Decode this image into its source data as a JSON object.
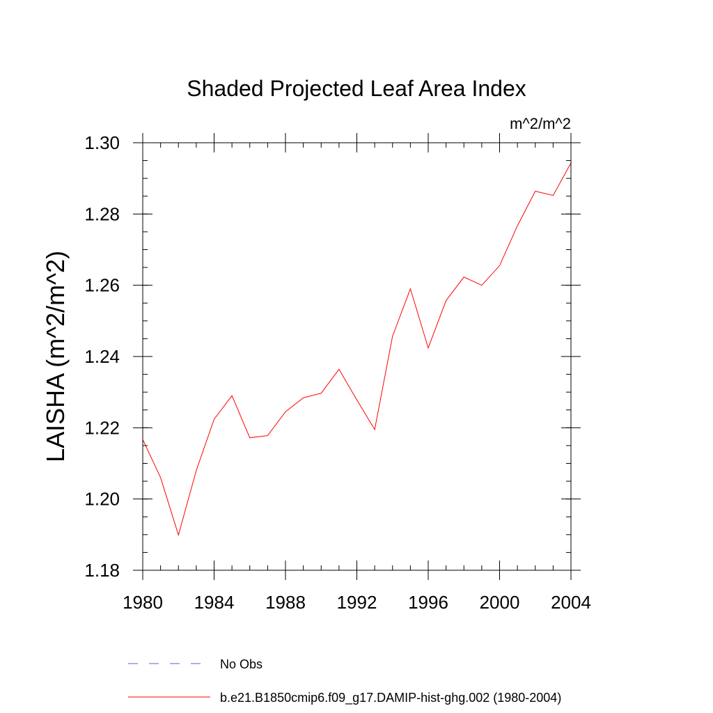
{
  "chart_data": {
    "type": "line",
    "title": "Shaded Projected Leaf Area Index",
    "units": "m^2/m^2",
    "xlabel": "",
    "ylabel": "LAISHA  (m^2/m^2)",
    "xlim": [
      1980,
      2004
    ],
    "ylim": [
      1.18,
      1.3
    ],
    "x_ticks": [
      1980,
      1984,
      1988,
      1992,
      1996,
      2000,
      2004
    ],
    "x_tick_labels": [
      "1980",
      "1984",
      "1988",
      "1992",
      "1996",
      "2000",
      "2004"
    ],
    "y_ticks": [
      1.18,
      1.2,
      1.22,
      1.24,
      1.26,
      1.28,
      1.3
    ],
    "y_tick_labels": [
      "1.18",
      "1.20",
      "1.22",
      "1.24",
      "1.26",
      "1.28",
      "1.30"
    ],
    "grid": false,
    "legend_position": "bottom",
    "series": [
      {
        "name": "No Obs",
        "color": "#6a5acd",
        "dash": "dashed",
        "x": [],
        "values": []
      },
      {
        "name": "b.e21.B1850cmip6.f09_g17.DAMIP-hist-ghg.002 (1980-2004)",
        "color": "#ff0000",
        "dash": "solid",
        "x": [
          1980,
          1981,
          1982,
          1983,
          1984,
          1985,
          1986,
          1987,
          1988,
          1989,
          1990,
          1991,
          1992,
          1993,
          1994,
          1995,
          1996,
          1997,
          1998,
          1999,
          2000,
          2001,
          2002,
          2003,
          2004
        ],
        "values": [
          1.2167,
          1.206,
          1.1899,
          1.208,
          1.2224,
          1.229,
          1.2172,
          1.2178,
          1.2245,
          1.2284,
          1.2297,
          1.2364,
          1.2278,
          1.2195,
          1.2457,
          1.259,
          1.2424,
          1.2557,
          1.2623,
          1.26,
          1.2655,
          1.2767,
          1.2864,
          1.2852,
          1.2943
        ]
      }
    ]
  }
}
